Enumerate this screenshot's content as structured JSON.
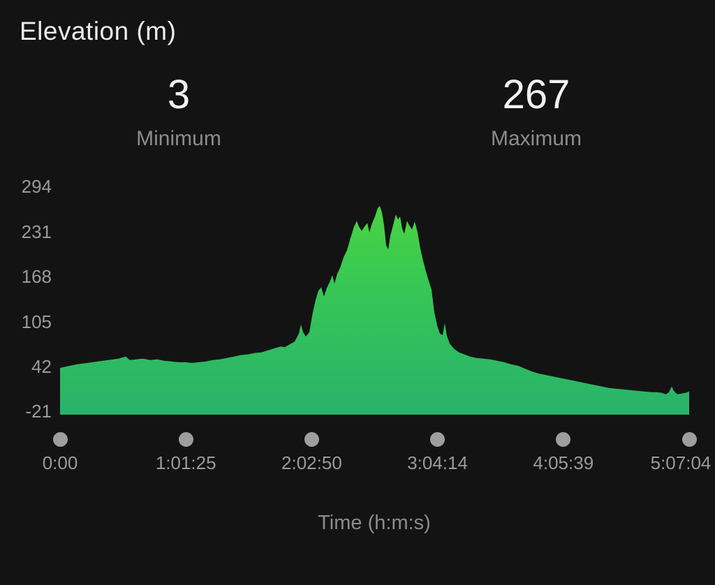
{
  "header": {
    "title": "Elevation (m)"
  },
  "stats": {
    "min_value": "3",
    "min_label": "Minimum",
    "max_value": "267",
    "max_label": "Maximum"
  },
  "colors": {
    "background": "#131313",
    "gradient_top": "#4ed73d",
    "gradient_bottom": "#29b26b",
    "tick_text": "#9a9a9a",
    "dot": "#9e9e9e"
  },
  "chart_data": {
    "type": "area",
    "title": "Elevation (m)",
    "xlabel": "Time (h:m:s)",
    "ylabel": "Elevation (m)",
    "ylim": [
      -21,
      294
    ],
    "grid": false,
    "legend": "none",
    "duration_s": 18424,
    "y_ticks": [
      294,
      231,
      168,
      105,
      42,
      -21
    ],
    "x_ticks": [
      {
        "label": "0:00",
        "t": 0
      },
      {
        "label": "1:01:25",
        "t": 3685
      },
      {
        "label": "2:02:50",
        "t": 7370
      },
      {
        "label": "3:04:14",
        "t": 11054
      },
      {
        "label": "4:05:39",
        "t": 14739
      },
      {
        "label": "5:07:04",
        "t": 18424
      }
    ],
    "series": [
      [
        0,
        40
      ],
      [
        184,
        42
      ],
      [
        491,
        45
      ],
      [
        797,
        47
      ],
      [
        1104,
        49
      ],
      [
        1411,
        51
      ],
      [
        1718,
        53
      ],
      [
        1922,
        56
      ],
      [
        2045,
        51
      ],
      [
        2229,
        52
      ],
      [
        2433,
        53
      ],
      [
        2638,
        51
      ],
      [
        2842,
        52
      ],
      [
        3047,
        50
      ],
      [
        3251,
        49
      ],
      [
        3456,
        48
      ],
      [
        3660,
        48
      ],
      [
        3865,
        47
      ],
      [
        4069,
        48
      ],
      [
        4274,
        49
      ],
      [
        4478,
        51
      ],
      [
        4683,
        52
      ],
      [
        4887,
        54
      ],
      [
        5092,
        56
      ],
      [
        5296,
        58
      ],
      [
        5501,
        59
      ],
      [
        5705,
        61
      ],
      [
        5910,
        62
      ],
      [
        6114,
        65
      ],
      [
        6319,
        68
      ],
      [
        6462,
        70
      ],
      [
        6585,
        69
      ],
      [
        6728,
        73
      ],
      [
        6871,
        77
      ],
      [
        6993,
        88
      ],
      [
        7055,
        101
      ],
      [
        7116,
        90
      ],
      [
        7198,
        84
      ],
      [
        7300,
        90
      ],
      [
        7402,
        118
      ],
      [
        7484,
        135
      ],
      [
        7566,
        148
      ],
      [
        7648,
        153
      ],
      [
        7730,
        140
      ],
      [
        7811,
        152
      ],
      [
        7893,
        160
      ],
      [
        7975,
        170
      ],
      [
        8036,
        158
      ],
      [
        8118,
        172
      ],
      [
        8200,
        180
      ],
      [
        8302,
        195
      ],
      [
        8404,
        205
      ],
      [
        8507,
        222
      ],
      [
        8609,
        238
      ],
      [
        8691,
        246
      ],
      [
        8752,
        238
      ],
      [
        8834,
        232
      ],
      [
        8916,
        238
      ],
      [
        8997,
        243
      ],
      [
        9059,
        230
      ],
      [
        9141,
        243
      ],
      [
        9222,
        252
      ],
      [
        9304,
        264
      ],
      [
        9366,
        267
      ],
      [
        9427,
        258
      ],
      [
        9488,
        240
      ],
      [
        9550,
        212
      ],
      [
        9611,
        206
      ],
      [
        9672,
        225
      ],
      [
        9754,
        240
      ],
      [
        9836,
        255
      ],
      [
        9897,
        248
      ],
      [
        9958,
        252
      ],
      [
        10020,
        235
      ],
      [
        10081,
        228
      ],
      [
        10163,
        246
      ],
      [
        10224,
        240
      ],
      [
        10306,
        234
      ],
      [
        10388,
        245
      ],
      [
        10469,
        230
      ],
      [
        10551,
        207
      ],
      [
        10633,
        190
      ],
      [
        10715,
        175
      ],
      [
        10797,
        162
      ],
      [
        10878,
        150
      ],
      [
        10960,
        118
      ],
      [
        11042,
        100
      ],
      [
        11124,
        88
      ],
      [
        11206,
        86
      ],
      [
        11267,
        103
      ],
      [
        11328,
        85
      ],
      [
        11410,
        74
      ],
      [
        11533,
        67
      ],
      [
        11676,
        62
      ],
      [
        11839,
        59
      ],
      [
        12003,
        56
      ],
      [
        12187,
        54
      ],
      [
        12391,
        53
      ],
      [
        12596,
        52
      ],
      [
        12800,
        50
      ],
      [
        13005,
        48
      ],
      [
        13209,
        45
      ],
      [
        13414,
        43
      ],
      [
        13618,
        39
      ],
      [
        13823,
        35
      ],
      [
        14027,
        32
      ],
      [
        14232,
        30
      ],
      [
        14436,
        28
      ],
      [
        14640,
        26
      ],
      [
        14845,
        24
      ],
      [
        15049,
        22
      ],
      [
        15254,
        20
      ],
      [
        15458,
        18
      ],
      [
        15663,
        16
      ],
      [
        15867,
        14
      ],
      [
        16072,
        12
      ],
      [
        16276,
        11
      ],
      [
        16481,
        10
      ],
      [
        16685,
        9
      ],
      [
        16890,
        8
      ],
      [
        17094,
        7
      ],
      [
        17299,
        6
      ],
      [
        17462,
        6
      ],
      [
        17626,
        5
      ],
      [
        17748,
        3
      ],
      [
        17830,
        6
      ],
      [
        17912,
        14
      ],
      [
        17973,
        8
      ],
      [
        18076,
        3
      ],
      [
        18198,
        4
      ],
      [
        18321,
        5
      ],
      [
        18424,
        7
      ]
    ]
  }
}
